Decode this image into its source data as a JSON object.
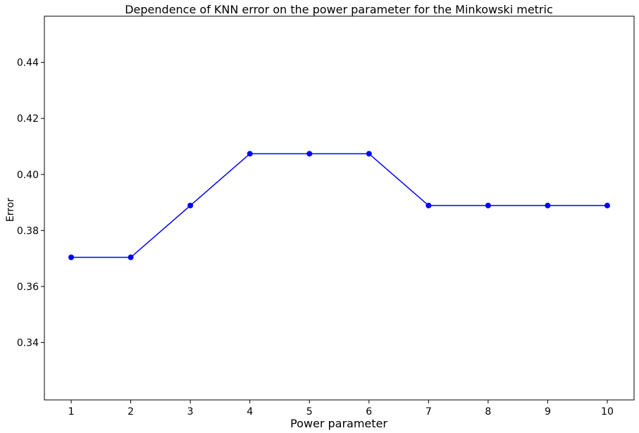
{
  "chart_data": {
    "type": "line",
    "title": "Dependence of KNN error on the power parameter for the Minkowski metric",
    "xlabel": "Power parameter",
    "ylabel": "Error",
    "x": [
      1,
      2,
      3,
      4,
      5,
      6,
      7,
      8,
      9,
      10
    ],
    "series": [
      {
        "values": [
          0.3704,
          0.3704,
          0.3889,
          0.4074,
          0.4074,
          0.4074,
          0.3889,
          0.3889,
          0.3889,
          0.3889
        ],
        "color": "#0000ff",
        "marker": "circle"
      }
    ],
    "xticks": [
      "1",
      "2",
      "3",
      "4",
      "5",
      "6",
      "7",
      "8",
      "9",
      "10"
    ],
    "yticks": [
      "0.34",
      "0.36",
      "0.38",
      "0.40",
      "0.42",
      "0.44"
    ],
    "xlim": [
      0.55,
      10.45
    ],
    "ylim": [
      0.3195,
      0.4565
    ],
    "grid": false
  }
}
